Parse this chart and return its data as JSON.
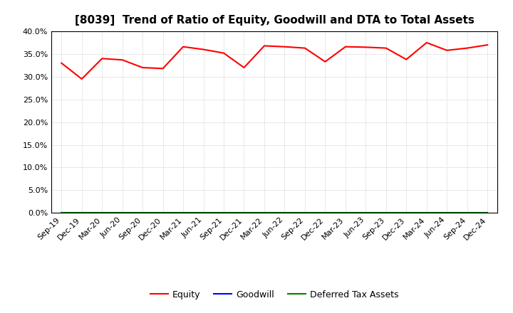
{
  "title": "[8039]  Trend of Ratio of Equity, Goodwill and DTA to Total Assets",
  "x_labels": [
    "Sep-19",
    "Dec-19",
    "Mar-20",
    "Jun-20",
    "Sep-20",
    "Dec-20",
    "Mar-21",
    "Jun-21",
    "Sep-21",
    "Dec-21",
    "Mar-22",
    "Jun-22",
    "Sep-22",
    "Dec-22",
    "Mar-23",
    "Jun-23",
    "Sep-23",
    "Dec-23",
    "Mar-24",
    "Jun-24",
    "Sep-24",
    "Dec-24"
  ],
  "equity": [
    0.33,
    0.295,
    0.34,
    0.337,
    0.32,
    0.318,
    0.366,
    0.36,
    0.352,
    0.32,
    0.368,
    0.366,
    0.363,
    0.333,
    0.366,
    0.365,
    0.363,
    0.338,
    0.375,
    0.358,
    0.363,
    0.37
  ],
  "goodwill": [
    0.0,
    0.0,
    0.0,
    0.0,
    0.0,
    0.0,
    0.0,
    0.0,
    0.0,
    0.0,
    0.0,
    0.0,
    0.0,
    0.0,
    0.0,
    0.0,
    0.0,
    0.0,
    0.0,
    0.0,
    0.0,
    0.0
  ],
  "dta": [
    0.0,
    0.0,
    0.0,
    0.0,
    0.0,
    0.0,
    0.0,
    0.0,
    0.0,
    0.0,
    0.0,
    0.0,
    0.0,
    0.0,
    0.0,
    0.0,
    0.0,
    0.0,
    0.0,
    0.0,
    0.0,
    0.0
  ],
  "equity_color": "#FF0000",
  "goodwill_color": "#0000FF",
  "dta_color": "#008000",
  "ylim": [
    0.0,
    0.4
  ],
  "yticks": [
    0.0,
    0.05,
    0.1,
    0.15,
    0.2,
    0.25,
    0.3,
    0.35,
    0.4
  ],
  "background_color": "#FFFFFF",
  "plot_bg_color": "#FFFFFF",
  "grid_color": "#AAAAAA",
  "legend_labels": [
    "Equity",
    "Goodwill",
    "Deferred Tax Assets"
  ],
  "title_fontsize": 11,
  "tick_fontsize": 8,
  "legend_fontsize": 9
}
